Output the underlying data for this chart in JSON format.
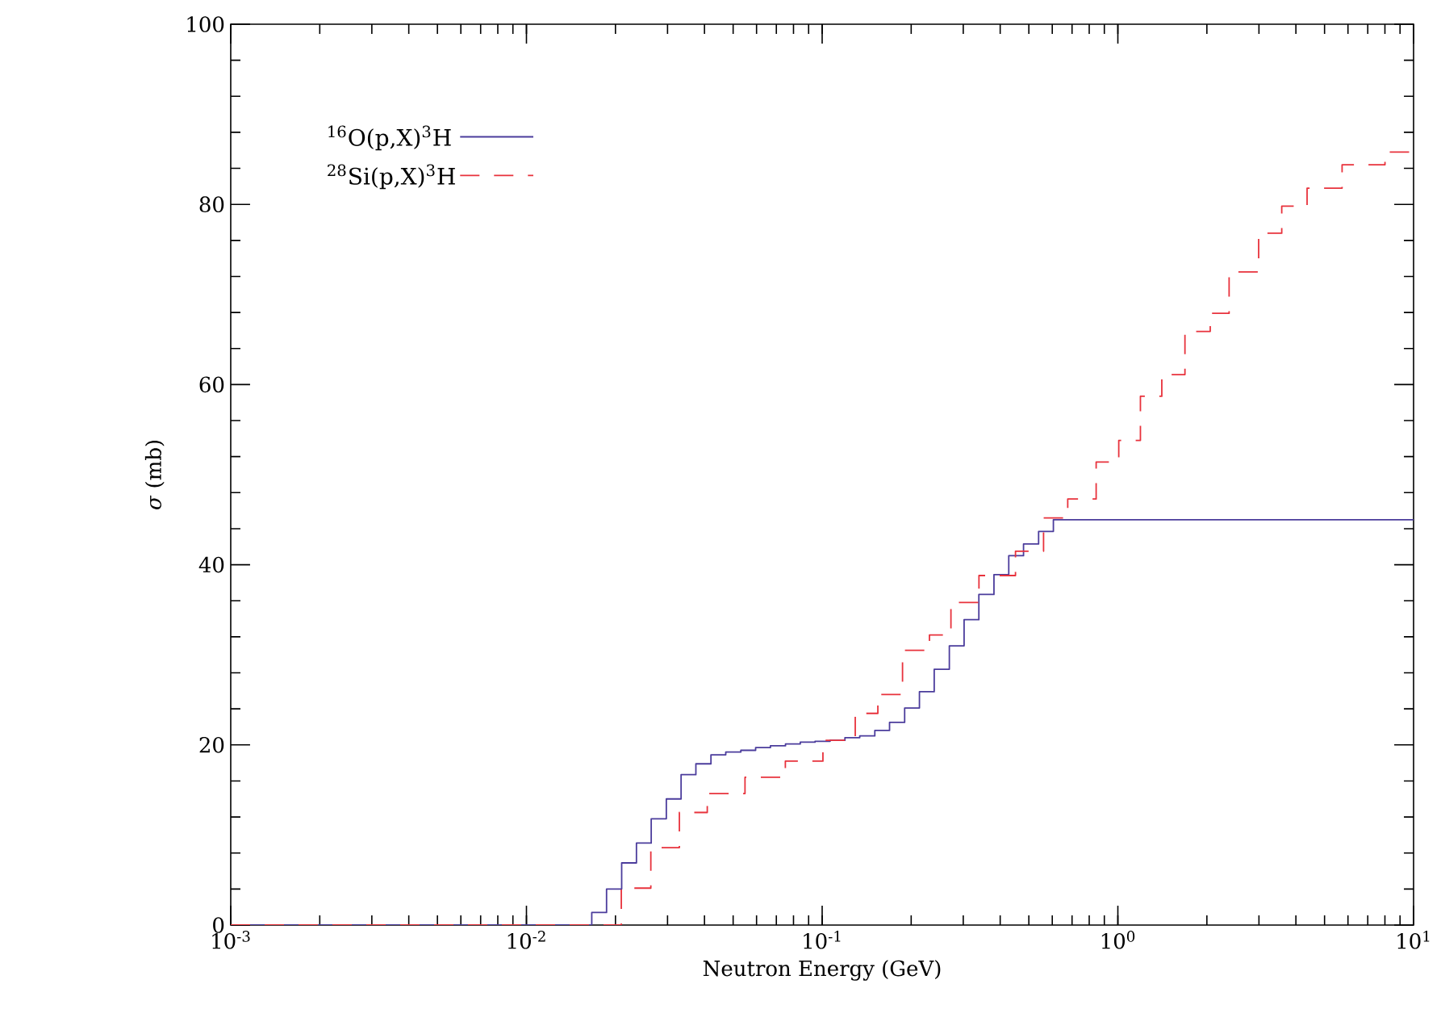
{
  "chart_data": {
    "type": "step",
    "xlabel": "Neutron Energy (GeV)",
    "ylabel": "*σ* (mb)",
    "log": "x",
    "xlim": [
      0.001,
      10
    ],
    "ylim": [
      0,
      100
    ],
    "xticks": [
      {
        "value": 0.001,
        "label": "10$^{-3}$"
      },
      {
        "value": 0.01,
        "label": "10$^{-2}$"
      },
      {
        "value": 0.1,
        "label": "10$^{-1}$"
      },
      {
        "value": 1,
        "label": "10$^{0}$"
      },
      {
        "value": 10,
        "label": "10$^{1}$"
      }
    ],
    "yticks": [
      0,
      20,
      40,
      60,
      80,
      100
    ],
    "grid": false,
    "legend": "top left",
    "series": [
      {
        "name": "$^{16}$O(p,X)$^{3}$H",
        "color": "#4b3c9c",
        "line_style": "solid",
        "x": [
          0.001,
          0.01663,
          0.01866,
          0.02099,
          0.02355,
          0.02642,
          0.02972,
          0.03334,
          0.03741,
          0.04207,
          0.04721,
          0.05309,
          0.05957,
          0.06683,
          0.07516,
          0.08433,
          0.09462,
          0.1064,
          0.1194,
          0.134,
          0.1507,
          0.169,
          0.1901,
          0.2133,
          0.2393,
          0.2692,
          0.302,
          0.3388,
          0.3811,
          0.4276,
          0.4797,
          0.5395,
          0.6053,
          10
        ],
        "values": [
          0,
          1.4,
          4.0,
          6.9,
          9.1,
          11.8,
          14.0,
          16.7,
          17.9,
          18.9,
          19.2,
          19.4,
          19.7,
          19.9,
          20.1,
          20.3,
          20.4,
          20.5,
          20.8,
          21.0,
          21.6,
          22.5,
          24.1,
          25.9,
          28.4,
          31.0,
          33.9,
          36.7,
          38.9,
          41.0,
          42.3,
          43.7,
          45.0,
          45.0
        ]
      },
      {
        "name": "$^{28}$Si(p,X)$^{3}$H",
        "color": "#e8323c",
        "line_style": "dashed",
        "x": [
          0.001,
          0.02093,
          0.02634,
          0.0329,
          0.04088,
          0.05484,
          0.07509,
          0.1006,
          0.1294,
          0.1543,
          0.187,
          0.2306,
          0.2726,
          0.3391,
          0.4506,
          0.5607,
          0.6769,
          0.8445,
          1.007,
          1.192,
          1.408,
          1.686,
          2.053,
          2.378,
          2.993,
          3.583,
          4.364,
          5.732,
          8.005,
          10
        ],
        "values": [
          0,
          4.1,
          8.6,
          12.5,
          14.6,
          16.4,
          18.2,
          20.5,
          23.5,
          25.6,
          30.5,
          32.2,
          35.8,
          38.8,
          41.5,
          45.2,
          47.3,
          51.4,
          53.8,
          58.7,
          61.1,
          65.9,
          67.9,
          72.5,
          76.8,
          79.8,
          81.8,
          84.4,
          85.8,
          85.8
        ]
      }
    ]
  }
}
